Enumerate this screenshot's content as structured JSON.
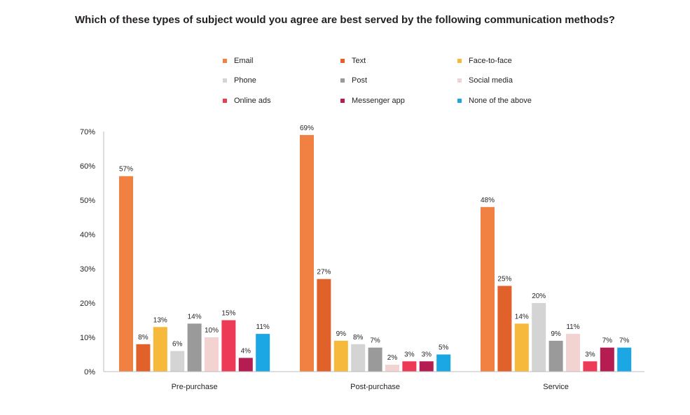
{
  "chart_data": {
    "type": "bar",
    "title": "Which of these types of subject would you agree are best served by the following communication methods?",
    "xlabel": "",
    "ylabel": "",
    "ylim": [
      0,
      70
    ],
    "yticks": [
      "0%",
      "10%",
      "20%",
      "30%",
      "40%",
      "50%",
      "60%",
      "70%"
    ],
    "ytick_values": [
      0,
      10,
      20,
      30,
      40,
      50,
      60,
      70
    ],
    "legend_position": "top",
    "categories": [
      "Pre-purchase",
      "Post-purchase",
      "Service"
    ],
    "series": [
      {
        "name": "Email",
        "color": "#f08143",
        "values": [
          57,
          69,
          48
        ],
        "labels": [
          "57%",
          "69%",
          "48%"
        ]
      },
      {
        "name": "Text",
        "color": "#e0612a",
        "values": [
          8,
          27,
          25
        ],
        "labels": [
          "8%",
          "27%",
          "25%"
        ]
      },
      {
        "name": "Face-to-face",
        "color": "#f6b93b",
        "values": [
          13,
          9,
          14
        ],
        "labels": [
          "13%",
          "9%",
          "14%"
        ]
      },
      {
        "name": "Phone",
        "color": "#d4d4d4",
        "values": [
          6,
          8,
          20
        ],
        "labels": [
          "6%",
          "8%",
          "20%"
        ]
      },
      {
        "name": "Post",
        "color": "#9a9a9a",
        "values": [
          14,
          7,
          9
        ],
        "labels": [
          "14%",
          "7%",
          "9%"
        ]
      },
      {
        "name": "Social media",
        "color": "#f2d3d1",
        "values": [
          10,
          2,
          11
        ],
        "labels": [
          "10%",
          "2%",
          "11%"
        ]
      },
      {
        "name": "Online ads",
        "color": "#ec3a57",
        "values": [
          15,
          3,
          3
        ],
        "labels": [
          "15%",
          "3%",
          "3%"
        ]
      },
      {
        "name": "Messenger app",
        "color": "#b51c52",
        "values": [
          4,
          3,
          7
        ],
        "labels": [
          "4%",
          "3%",
          "7%"
        ]
      },
      {
        "name": "None of the above",
        "color": "#1aa7e4",
        "values": [
          11,
          5,
          7
        ],
        "labels": [
          "11%",
          "5%",
          "7%"
        ]
      }
    ]
  }
}
